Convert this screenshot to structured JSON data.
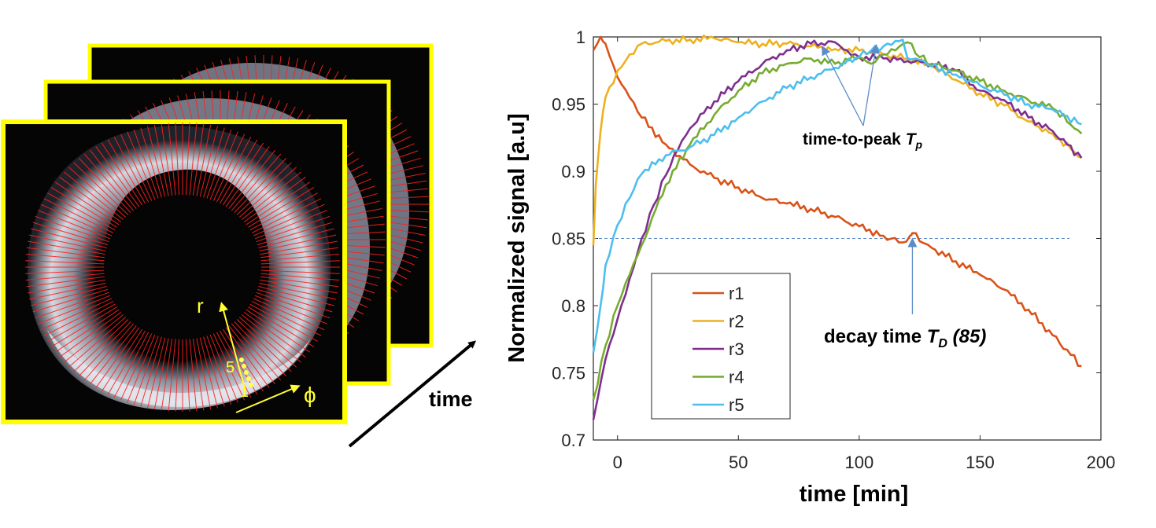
{
  "left_panel": {
    "axis_r_label": "r",
    "axis_phi_label": "ϕ",
    "layer_start_label": "1",
    "layer_end_label": "5",
    "time_arrow_label": "time"
  },
  "colors": {
    "frame": "#ffff00",
    "spokes": "#ff2020",
    "annotation_arrow": "#5b8cc8"
  },
  "chart_data": {
    "type": "line",
    "title": "",
    "xlabel": "time [min]",
    "ylabel": "Normalized signal [a.u]",
    "xlim": [
      -10,
      200
    ],
    "ylim": [
      0.7,
      1.0
    ],
    "x_ticks": [
      0,
      50,
      100,
      150,
      200
    ],
    "y_ticks": [
      0.7,
      0.75,
      0.8,
      0.85,
      0.9,
      0.95,
      1.0
    ],
    "y_tick_labels": [
      "0.7",
      "0.75",
      "0.8",
      "0.85",
      "0.9",
      "0.95",
      "1"
    ],
    "legend_position": "lower-left",
    "threshold": {
      "value": 0.85,
      "x_range": [
        -10,
        187
      ],
      "style": "dashed"
    },
    "series": [
      {
        "name": "r1",
        "color": "#d95319",
        "x": [
          -10,
          -7,
          -5,
          0,
          5,
          10,
          20,
          30,
          40,
          50,
          60,
          70,
          80,
          90,
          100,
          110,
          118,
          121,
          122,
          125,
          130,
          140,
          150,
          160,
          170,
          180,
          192
        ],
        "y": [
          0.99,
          1.0,
          0.995,
          0.97,
          0.955,
          0.94,
          0.92,
          0.905,
          0.895,
          0.888,
          0.88,
          0.876,
          0.872,
          0.866,
          0.859,
          0.852,
          0.847,
          0.852,
          0.854,
          0.848,
          0.843,
          0.833,
          0.823,
          0.812,
          0.797,
          0.778,
          0.755
        ]
      },
      {
        "name": "r2",
        "color": "#edb120",
        "x": [
          -10,
          -9,
          -7,
          -5,
          0,
          5,
          10,
          20,
          30,
          40,
          50,
          60,
          70,
          80,
          90,
          100,
          110,
          120,
          130,
          140,
          150,
          160,
          170,
          180,
          192
        ],
        "y": [
          0.845,
          0.89,
          0.93,
          0.955,
          0.975,
          0.987,
          0.995,
          0.997,
          0.998,
          0.999,
          0.996,
          0.995,
          0.995,
          0.993,
          0.991,
          0.99,
          0.987,
          0.984,
          0.978,
          0.968,
          0.958,
          0.949,
          0.937,
          0.928,
          0.91
        ]
      },
      {
        "name": "r3",
        "color": "#7e2f8e",
        "x": [
          -10,
          -5,
          0,
          5,
          10,
          15,
          20,
          25,
          30,
          40,
          50,
          60,
          70,
          80,
          90,
          95,
          100,
          110,
          120,
          130,
          140,
          150,
          160,
          170,
          180,
          192
        ],
        "y": [
          0.715,
          0.76,
          0.79,
          0.82,
          0.85,
          0.875,
          0.897,
          0.916,
          0.932,
          0.952,
          0.967,
          0.98,
          0.99,
          0.995,
          0.996,
          0.99,
          0.985,
          0.984,
          0.982,
          0.98,
          0.975,
          0.96,
          0.953,
          0.94,
          0.93,
          0.91
        ]
      },
      {
        "name": "r4",
        "color": "#77ac30",
        "x": [
          -10,
          -5,
          0,
          5,
          10,
          20,
          30,
          40,
          50,
          60,
          70,
          80,
          90,
          100,
          105,
          110,
          115,
          120,
          125,
          130,
          140,
          150,
          160,
          170,
          180,
          192
        ],
        "y": [
          0.73,
          0.77,
          0.8,
          0.823,
          0.845,
          0.89,
          0.92,
          0.942,
          0.96,
          0.973,
          0.98,
          0.984,
          0.98,
          0.985,
          0.98,
          0.987,
          0.99,
          0.996,
          0.985,
          0.98,
          0.975,
          0.967,
          0.96,
          0.953,
          0.947,
          0.928
        ]
      },
      {
        "name": "r5",
        "color": "#4dbeee",
        "x": [
          -10,
          -7,
          -5,
          0,
          5,
          10,
          20,
          30,
          40,
          50,
          60,
          70,
          80,
          90,
          100,
          105,
          110,
          115,
          118,
          120,
          125,
          130,
          140,
          150,
          160,
          170,
          180,
          192
        ],
        "y": [
          0.765,
          0.8,
          0.83,
          0.86,
          0.88,
          0.898,
          0.912,
          0.918,
          0.927,
          0.94,
          0.952,
          0.962,
          0.97,
          0.977,
          0.985,
          0.99,
          0.993,
          0.997,
          0.998,
          0.984,
          0.983,
          0.978,
          0.972,
          0.964,
          0.957,
          0.95,
          0.946,
          0.935
        ]
      }
    ],
    "annotations": {
      "time_to_peak": {
        "text": "time-to-peak ",
        "symbol": "T",
        "subscript": "p",
        "targets": [
          [
            85,
            0.992
          ],
          [
            107,
            0.993
          ]
        ]
      },
      "decay_time": {
        "text": "decay time ",
        "symbol": "T",
        "subscript": "D",
        "suffix": " (85)",
        "target": [
          122,
          0.85
        ]
      }
    }
  }
}
